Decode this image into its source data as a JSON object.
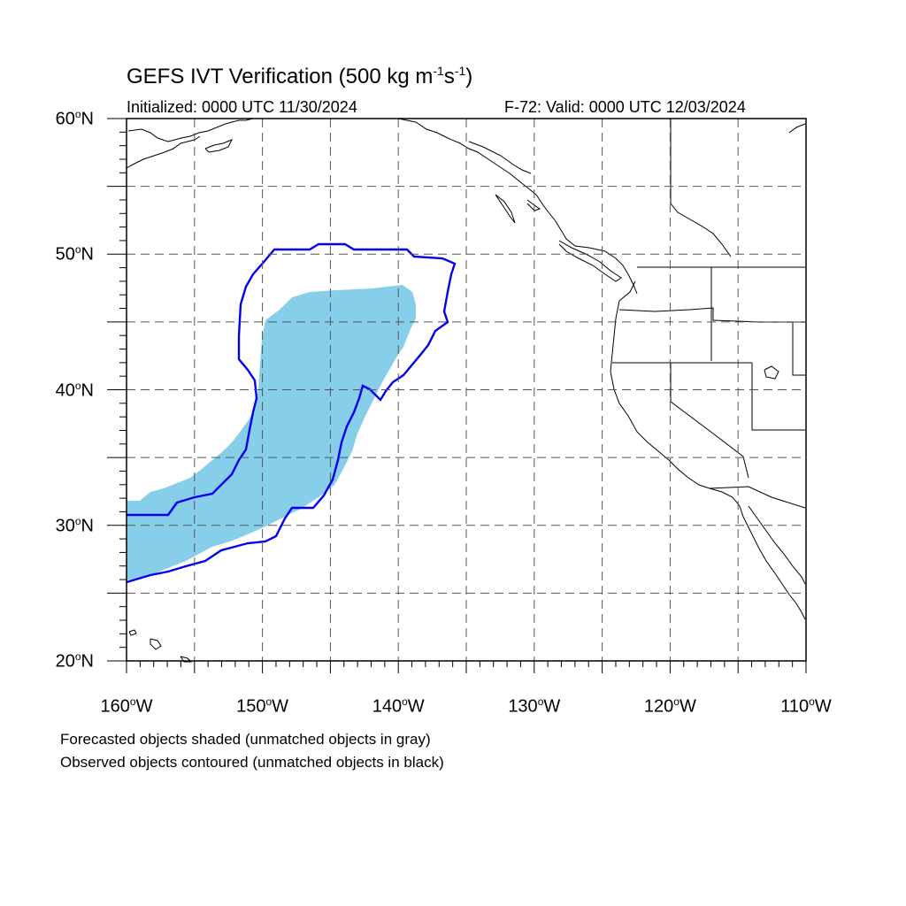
{
  "header": {
    "title": "GEFS IVT Verification (500 kg m",
    "title_exp1": "-1",
    "title_mid": "s",
    "title_exp2": "-1",
    "title_end": ")",
    "initialized": "Initialized: 0000 UTC 11/30/2024",
    "valid": "F-72: Valid: 0000 UTC 12/03/2024"
  },
  "axes": {
    "lat_range": [
      20,
      60
    ],
    "lon_range": [
      -160,
      -110
    ],
    "lat_ticks": [
      {
        "deg": "20",
        "dir": "N"
      },
      {
        "deg": "30",
        "dir": "N"
      },
      {
        "deg": "40",
        "dir": "N"
      },
      {
        "deg": "50",
        "dir": "N"
      },
      {
        "deg": "60",
        "dir": "N"
      }
    ],
    "lon_ticks": [
      {
        "deg": "160",
        "dir": "W"
      },
      {
        "deg": "150",
        "dir": "W"
      },
      {
        "deg": "140",
        "dir": "W"
      },
      {
        "deg": "130",
        "dir": "W"
      },
      {
        "deg": "120",
        "dir": "W"
      },
      {
        "deg": "110",
        "dir": "W"
      }
    ],
    "grid_spacing_deg": 5,
    "grid": true
  },
  "legend": {
    "line1": "Forecasted objects shaded (unmatched objects in gray)",
    "line2": "Observed objects contoured (unmatched objects in black)"
  },
  "colors": {
    "forecast_fill": "#87ceeb",
    "observed_contour": "#0000ee",
    "coastline": "#000000",
    "grid": "#555555"
  }
}
